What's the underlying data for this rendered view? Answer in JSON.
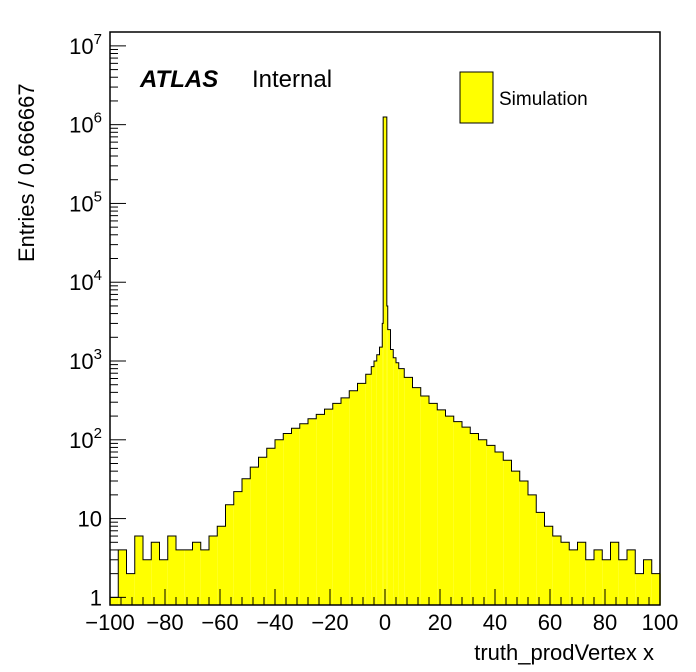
{
  "chart_data": {
    "type": "bar",
    "title": "",
    "xlabel": "truth_prodVertex x",
    "ylabel": "Entries / 0.666667",
    "xlim": [
      -100,
      100
    ],
    "ylim": [
      0.8,
      15000000
    ],
    "yscale": "log",
    "grid": false,
    "legend_position": "top-right",
    "bin_width": 0.666667,
    "x_ticks": [
      "−100",
      "−80",
      "−60",
      "−40",
      "−20",
      "0",
      "20",
      "40",
      "60",
      "80",
      "100"
    ],
    "y_ticks": [
      {
        "value": 1,
        "base": "1",
        "exp": ""
      },
      {
        "value": 10,
        "base": "10",
        "exp": ""
      },
      {
        "value": 100,
        "base": "10",
        "exp": "2"
      },
      {
        "value": 1000,
        "base": "10",
        "exp": "3"
      },
      {
        "value": 10000,
        "base": "10",
        "exp": "4"
      },
      {
        "value": 100000,
        "base": "10",
        "exp": "5"
      },
      {
        "value": 1000000,
        "base": "10",
        "exp": "6"
      },
      {
        "value": 10000000,
        "base": "10",
        "exp": "7"
      }
    ],
    "atlas_label": "ATLAS",
    "atlas_sublabel": "Internal",
    "fill_color": "#ffff00",
    "line_color": "#000000",
    "series": [
      {
        "name": "Simulation",
        "points": [
          [
            -100,
            1
          ],
          [
            -97,
            4
          ],
          [
            -94,
            2
          ],
          [
            -91,
            6
          ],
          [
            -88,
            3
          ],
          [
            -85,
            5
          ],
          [
            -82,
            3
          ],
          [
            -79,
            6
          ],
          [
            -76,
            4
          ],
          [
            -73,
            4
          ],
          [
            -70,
            5
          ],
          [
            -67,
            4
          ],
          [
            -64,
            6
          ],
          [
            -61,
            8
          ],
          [
            -58,
            15
          ],
          [
            -55,
            22
          ],
          [
            -52,
            32
          ],
          [
            -49,
            45
          ],
          [
            -46,
            60
          ],
          [
            -43,
            78
          ],
          [
            -40,
            100
          ],
          [
            -37,
            120
          ],
          [
            -34,
            140
          ],
          [
            -31,
            160
          ],
          [
            -28,
            185
          ],
          [
            -25,
            210
          ],
          [
            -22,
            245
          ],
          [
            -19,
            290
          ],
          [
            -16,
            340
          ],
          [
            -13,
            420
          ],
          [
            -10,
            520
          ],
          [
            -7,
            680
          ],
          [
            -5,
            850
          ],
          [
            -4,
            1000
          ],
          [
            -3,
            1200
          ],
          [
            -2,
            1500
          ],
          [
            -1,
            3000
          ],
          [
            -0.6667,
            1250000
          ],
          [
            0,
            1250000
          ],
          [
            0.6667,
            5000
          ],
          [
            1,
            2500
          ],
          [
            2,
            1400
          ],
          [
            3,
            1100
          ],
          [
            4,
            950
          ],
          [
            5,
            800
          ],
          [
            7,
            620
          ],
          [
            10,
            460
          ],
          [
            13,
            360
          ],
          [
            16,
            290
          ],
          [
            19,
            240
          ],
          [
            22,
            200
          ],
          [
            25,
            170
          ],
          [
            28,
            145
          ],
          [
            31,
            120
          ],
          [
            34,
            100
          ],
          [
            37,
            85
          ],
          [
            40,
            70
          ],
          [
            43,
            55
          ],
          [
            46,
            40
          ],
          [
            49,
            30
          ],
          [
            52,
            20
          ],
          [
            55,
            12
          ],
          [
            58,
            8
          ],
          [
            61,
            6
          ],
          [
            64,
            5
          ],
          [
            67,
            4
          ],
          [
            70,
            5
          ],
          [
            73,
            3
          ],
          [
            76,
            4
          ],
          [
            79,
            3
          ],
          [
            82,
            5
          ],
          [
            85,
            3
          ],
          [
            88,
            4
          ],
          [
            91,
            2
          ],
          [
            94,
            3
          ],
          [
            97,
            2
          ],
          [
            100,
            2
          ]
        ]
      }
    ]
  }
}
